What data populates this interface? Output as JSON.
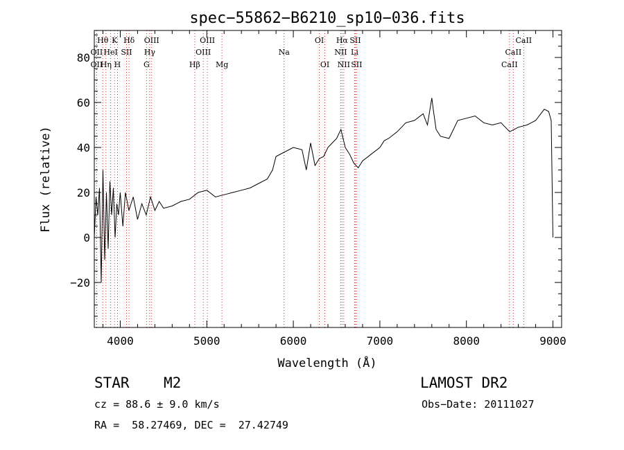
{
  "chart_data": {
    "type": "line",
    "title": "spec−55862−B6210_sp10−036.fits",
    "xlabel": "Wavelength (Å)",
    "ylabel": "Flux (relative)",
    "xlim": [
      3700,
      9100
    ],
    "ylim": [
      -40,
      92
    ],
    "xticks": [
      4000,
      5000,
      6000,
      7000,
      8000,
      9000
    ],
    "xtick_labels": [
      "4000",
      "5000",
      "6000",
      "7000",
      "8000",
      "9000"
    ],
    "yticks": [
      -20,
      0,
      20,
      40,
      60,
      80
    ],
    "ytick_labels": [
      "−20",
      "0",
      "20",
      "40",
      "60",
      "80"
    ],
    "grid": false,
    "series": [
      {
        "name": "flux",
        "x": [
          3700,
          3720,
          3740,
          3760,
          3780,
          3800,
          3820,
          3840,
          3860,
          3880,
          3900,
          3920,
          3940,
          3960,
          3980,
          4000,
          4030,
          4060,
          4100,
          4150,
          4200,
          4250,
          4300,
          4350,
          4400,
          4450,
          4500,
          4600,
          4700,
          4800,
          4900,
          5000,
          5100,
          5200,
          5300,
          5400,
          5500,
          5600,
          5700,
          5760,
          5800,
          5900,
          6000,
          6100,
          6150,
          6200,
          6250,
          6300,
          6350,
          6400,
          6450,
          6500,
          6550,
          6600,
          6650,
          6700,
          6750,
          6800,
          6900,
          7000,
          7050,
          7100,
          7200,
          7300,
          7400,
          7500,
          7550,
          7600,
          7620,
          7650,
          7700,
          7800,
          7900,
          8000,
          8100,
          8200,
          8300,
          8400,
          8500,
          8600,
          8700,
          8800,
          8900,
          8950,
          8980,
          9000
        ],
        "y": [
          0,
          18,
          10,
          22,
          -20,
          30,
          -10,
          20,
          -5,
          25,
          10,
          22,
          0,
          15,
          10,
          20,
          5,
          20,
          12,
          18,
          8,
          15,
          10,
          18,
          12,
          16,
          13,
          14,
          16,
          17,
          20,
          21,
          18,
          19,
          20,
          21,
          22,
          24,
          26,
          30,
          36,
          38,
          40,
          39,
          30,
          42,
          32,
          35,
          36,
          40,
          42,
          44,
          48,
          40,
          37,
          33,
          31,
          34,
          37,
          40,
          43,
          44,
          47,
          51,
          52,
          55,
          50,
          62,
          56,
          48,
          45,
          44,
          52,
          53,
          54,
          51,
          50,
          51,
          47,
          49,
          50,
          52,
          57,
          56,
          52,
          0
        ]
      }
    ],
    "emission_lines": [
      {
        "label": "Hθ",
        "x": 3798,
        "row": 1
      },
      {
        "label": "K",
        "x": 3934,
        "row": 1
      },
      {
        "label": "Hδ",
        "x": 4102,
        "row": 1
      },
      {
        "label": "OIII",
        "x": 4363,
        "row": 1
      },
      {
        "label": "OIII",
        "x": 5007,
        "row": 1
      },
      {
        "label": "OI",
        "x": 6300,
        "row": 1
      },
      {
        "label": "Hα",
        "x": 6563,
        "row": 1
      },
      {
        "label": "SII",
        "x": 6716,
        "row": 1
      },
      {
        "label": "CaII",
        "x": 8662,
        "row": 1
      },
      {
        "label": "OII",
        "x": 3727,
        "row": 2
      },
      {
        "label": "HeI",
        "x": 3889,
        "row": 2
      },
      {
        "label": "SII",
        "x": 4072,
        "row": 2
      },
      {
        "label": "Hγ",
        "x": 4340,
        "row": 2
      },
      {
        "label": "OIII",
        "x": 4959,
        "row": 2
      },
      {
        "label": "Na",
        "x": 5893,
        "row": 2
      },
      {
        "label": "NII",
        "x": 6548,
        "row": 2
      },
      {
        "label": "Li",
        "x": 6708,
        "row": 2
      },
      {
        "label": "CaII",
        "x": 8542,
        "row": 2
      },
      {
        "label": "OII",
        "x": 3727,
        "row": 3
      },
      {
        "label": "Hη",
        "x": 3835,
        "row": 3
      },
      {
        "label": "H",
        "x": 3968,
        "row": 3
      },
      {
        "label": "G",
        "x": 4304,
        "row": 3
      },
      {
        "label": "Hβ",
        "x": 4861,
        "row": 3
      },
      {
        "label": "Mg",
        "x": 5175,
        "row": 3
      },
      {
        "label": "OI",
        "x": 6364,
        "row": 3
      },
      {
        "label": "NII",
        "x": 6583,
        "row": 3
      },
      {
        "label": "SII",
        "x": 6731,
        "row": 3
      },
      {
        "label": "CaII",
        "x": 8498,
        "row": 3
      }
    ]
  },
  "info": {
    "object_type": "STAR",
    "subclass": "M2",
    "survey": "LAMOST DR2",
    "cz_text": "cz = 88.6 ± 9.0 km/s",
    "obs_date_text": "Obs−Date: 20111027",
    "coords_text": "RA =  58.27469, DEC =  27.42749"
  }
}
